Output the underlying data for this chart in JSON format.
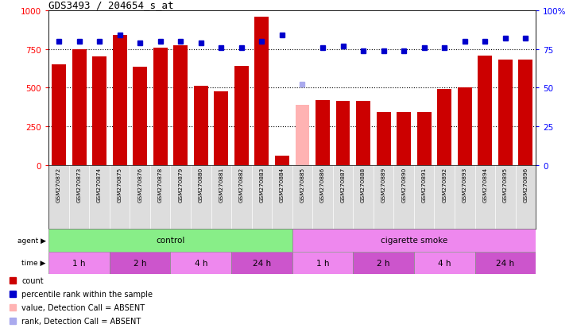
{
  "title": "GDS3493 / 204654_s_at",
  "samples": [
    "GSM270872",
    "GSM270873",
    "GSM270874",
    "GSM270875",
    "GSM270876",
    "GSM270878",
    "GSM270879",
    "GSM270880",
    "GSM270881",
    "GSM270882",
    "GSM270883",
    "GSM270884",
    "GSM270885",
    "GSM270886",
    "GSM270887",
    "GSM270888",
    "GSM270889",
    "GSM270890",
    "GSM270891",
    "GSM270892",
    "GSM270893",
    "GSM270894",
    "GSM270895",
    "GSM270896"
  ],
  "counts": [
    650,
    750,
    700,
    840,
    635,
    760,
    775,
    510,
    475,
    640,
    960,
    60,
    390,
    420,
    415,
    415,
    340,
    345,
    340,
    490,
    500,
    710,
    680,
    680
  ],
  "ranks": [
    80,
    80,
    80,
    84,
    79,
    80,
    80,
    79,
    76,
    76,
    80,
    84,
    52,
    76,
    77,
    74,
    74,
    74,
    76,
    76,
    80,
    80,
    82,
    82
  ],
  "absent_count_idx": [
    12
  ],
  "absent_rank_idx": [
    12
  ],
  "bar_color": "#cc0000",
  "absent_bar_color": "#ffb3b3",
  "rank_color": "#0000cc",
  "absent_rank_color": "#aaaaee",
  "bg_color": "#ffffff",
  "plot_bg_color": "#ffffff",
  "ylim_left": [
    0,
    1000
  ],
  "ylim_right": [
    0,
    100
  ],
  "yticks_left": [
    0,
    250,
    500,
    750,
    1000
  ],
  "yticks_right": [
    0,
    25,
    50,
    75,
    100
  ],
  "gridlines": [
    250,
    500,
    750
  ],
  "agent_groups": [
    {
      "label": "control",
      "start": 0,
      "end": 12,
      "color": "#88ee88"
    },
    {
      "label": "cigarette smoke",
      "start": 12,
      "end": 24,
      "color": "#ee88ee"
    }
  ],
  "time_groups": [
    {
      "label": "1 h",
      "start": 0,
      "end": 3,
      "color": "#ee88ee"
    },
    {
      "label": "2 h",
      "start": 3,
      "end": 6,
      "color": "#cc55cc"
    },
    {
      "label": "4 h",
      "start": 6,
      "end": 9,
      "color": "#ee88ee"
    },
    {
      "label": "24 h",
      "start": 9,
      "end": 12,
      "color": "#cc55cc"
    },
    {
      "label": "1 h",
      "start": 12,
      "end": 15,
      "color": "#ee88ee"
    },
    {
      "label": "2 h",
      "start": 15,
      "end": 18,
      "color": "#cc55cc"
    },
    {
      "label": "4 h",
      "start": 18,
      "end": 21,
      "color": "#ee88ee"
    },
    {
      "label": "24 h",
      "start": 21,
      "end": 24,
      "color": "#cc55cc"
    }
  ],
  "legend_items": [
    {
      "label": "count",
      "color": "#cc0000",
      "marker": "s"
    },
    {
      "label": "percentile rank within the sample",
      "color": "#0000cc",
      "marker": "s"
    },
    {
      "label": "value, Detection Call = ABSENT",
      "color": "#ffb3b3",
      "marker": "s"
    },
    {
      "label": "rank, Detection Call = ABSENT",
      "color": "#aaaaee",
      "marker": "s"
    }
  ]
}
